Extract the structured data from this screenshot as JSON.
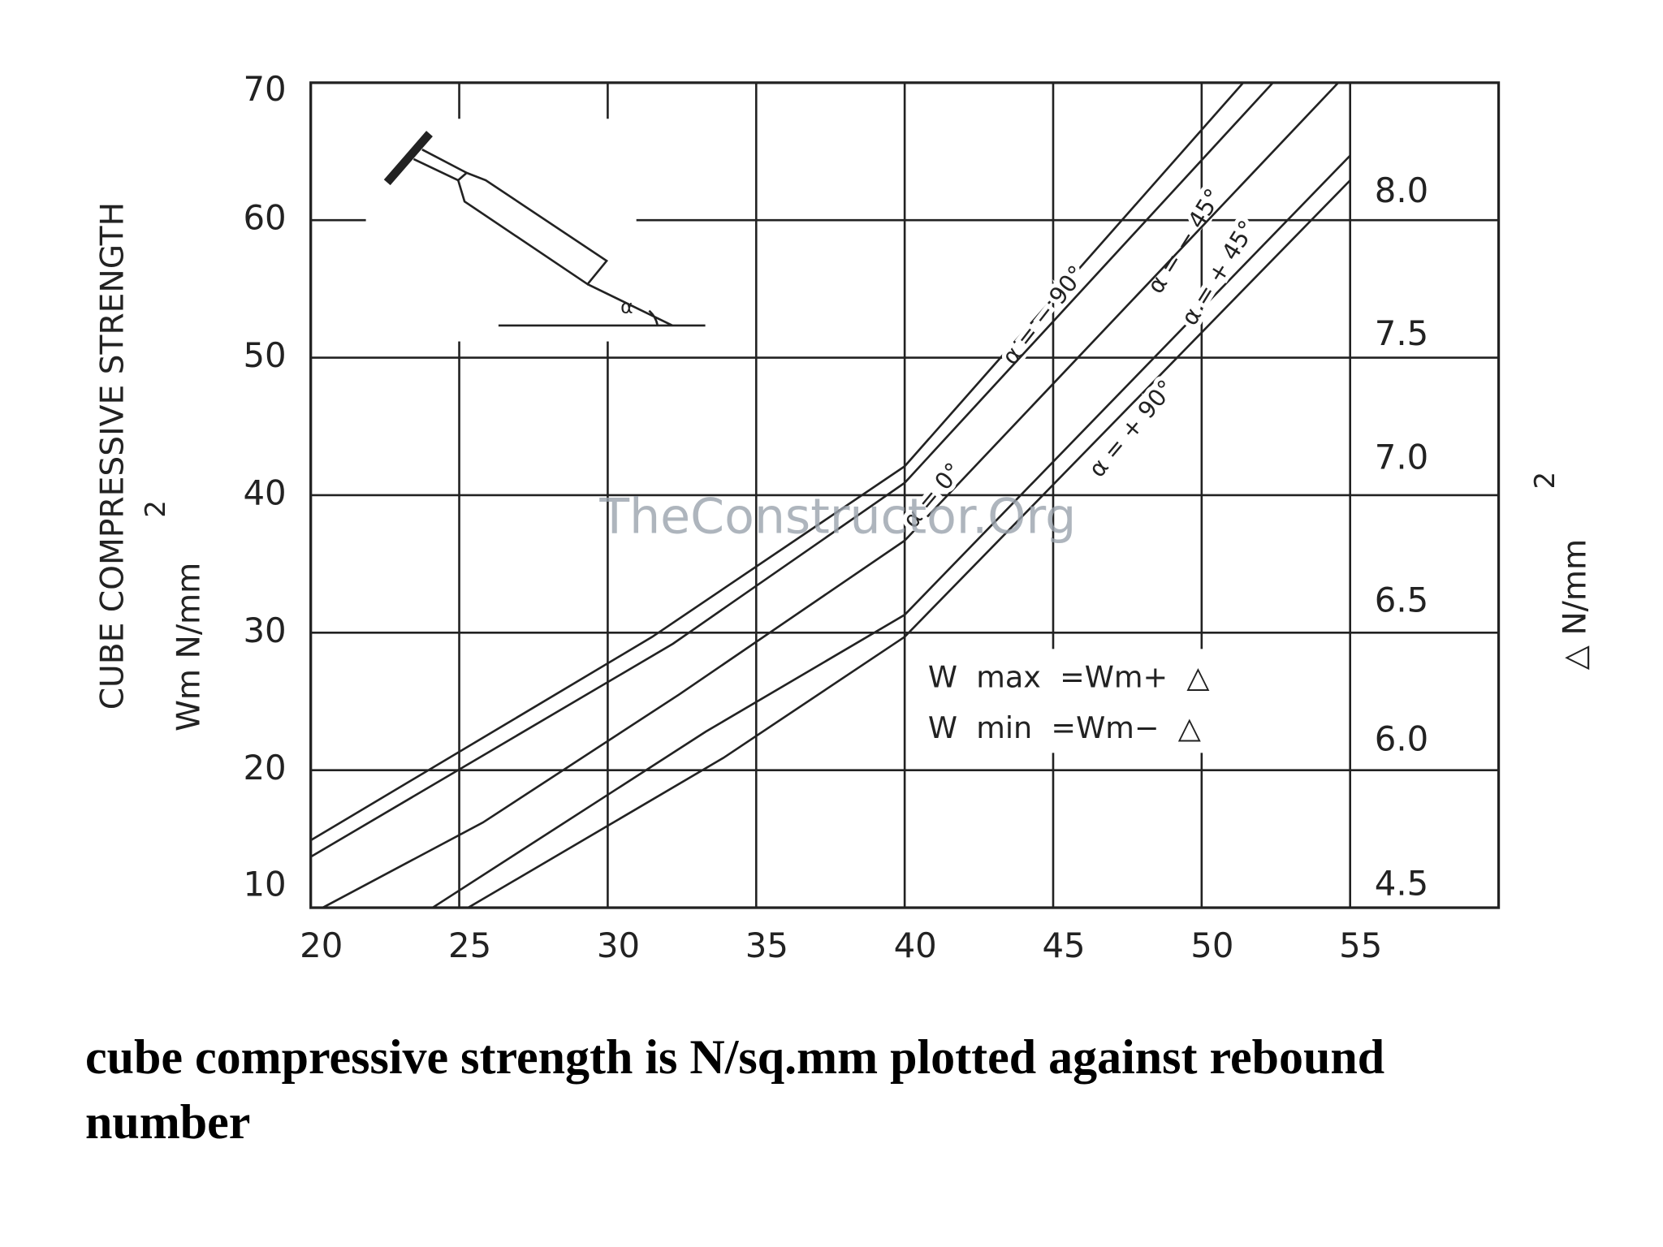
{
  "chart_data": {
    "type": "line",
    "y_axis_label": "CUBE COMPRESSIVE STRENGTH",
    "y_axis_unit": "Wm N/mm",
    "y_axis_unit_exponent": "2",
    "y2_axis_unit": "△ N/mm",
    "y2_axis_unit_exponent": "2",
    "inset_angle_label": "α",
    "legend_lines": [
      "W  max  =Wm+  △",
      "W  min  =Wm−  △"
    ],
    "watermark": "TheConstructor.Org",
    "xlim": [
      20,
      60
    ],
    "xticks": [
      20,
      25,
      30,
      35,
      40,
      45,
      50,
      55
    ],
    "ylim": [
      10,
      70
    ],
    "yticks": [
      10,
      20,
      30,
      40,
      50,
      60,
      70
    ],
    "grid": true,
    "color": "#222222",
    "delta_labels": [
      {
        "strength": 62,
        "label": "8.0"
      },
      {
        "strength": 51.6,
        "label": "7.5"
      },
      {
        "strength": 42.6,
        "label": "7.0"
      },
      {
        "strength": 32.2,
        "label": "6.5"
      },
      {
        "strength": 22.1,
        "label": "6.0"
      },
      {
        "strength": 11.6,
        "label": "4.5"
      }
    ],
    "series": [
      {
        "name": "α = − 90°",
        "x": [
          20,
          31.5,
          40,
          51.4
        ],
        "values": [
          14.9,
          29.7,
          42.1,
          70
        ]
      },
      {
        "name": "α = − 45°",
        "x": [
          20,
          32.2,
          40,
          52.4
        ],
        "values": [
          13.7,
          29.2,
          40.9,
          70
        ]
      },
      {
        "name": "α = 0°",
        "x": [
          20.4,
          25.8,
          32.4,
          40,
          54.6
        ],
        "values": [
          10,
          16.2,
          25.5,
          36.7,
          70
        ]
      },
      {
        "name": "α = + 45°",
        "x": [
          24.1,
          33.3,
          40,
          55
        ],
        "values": [
          10,
          22.8,
          31.3,
          64.7
        ]
      },
      {
        "name": "α = + 90°",
        "x": [
          25.3,
          33.9,
          40,
          55
        ],
        "values": [
          10,
          20.9,
          29.7,
          62.9
        ]
      }
    ]
  },
  "caption": "cube compressive strength is N/sq.mm plotted against rebound number"
}
